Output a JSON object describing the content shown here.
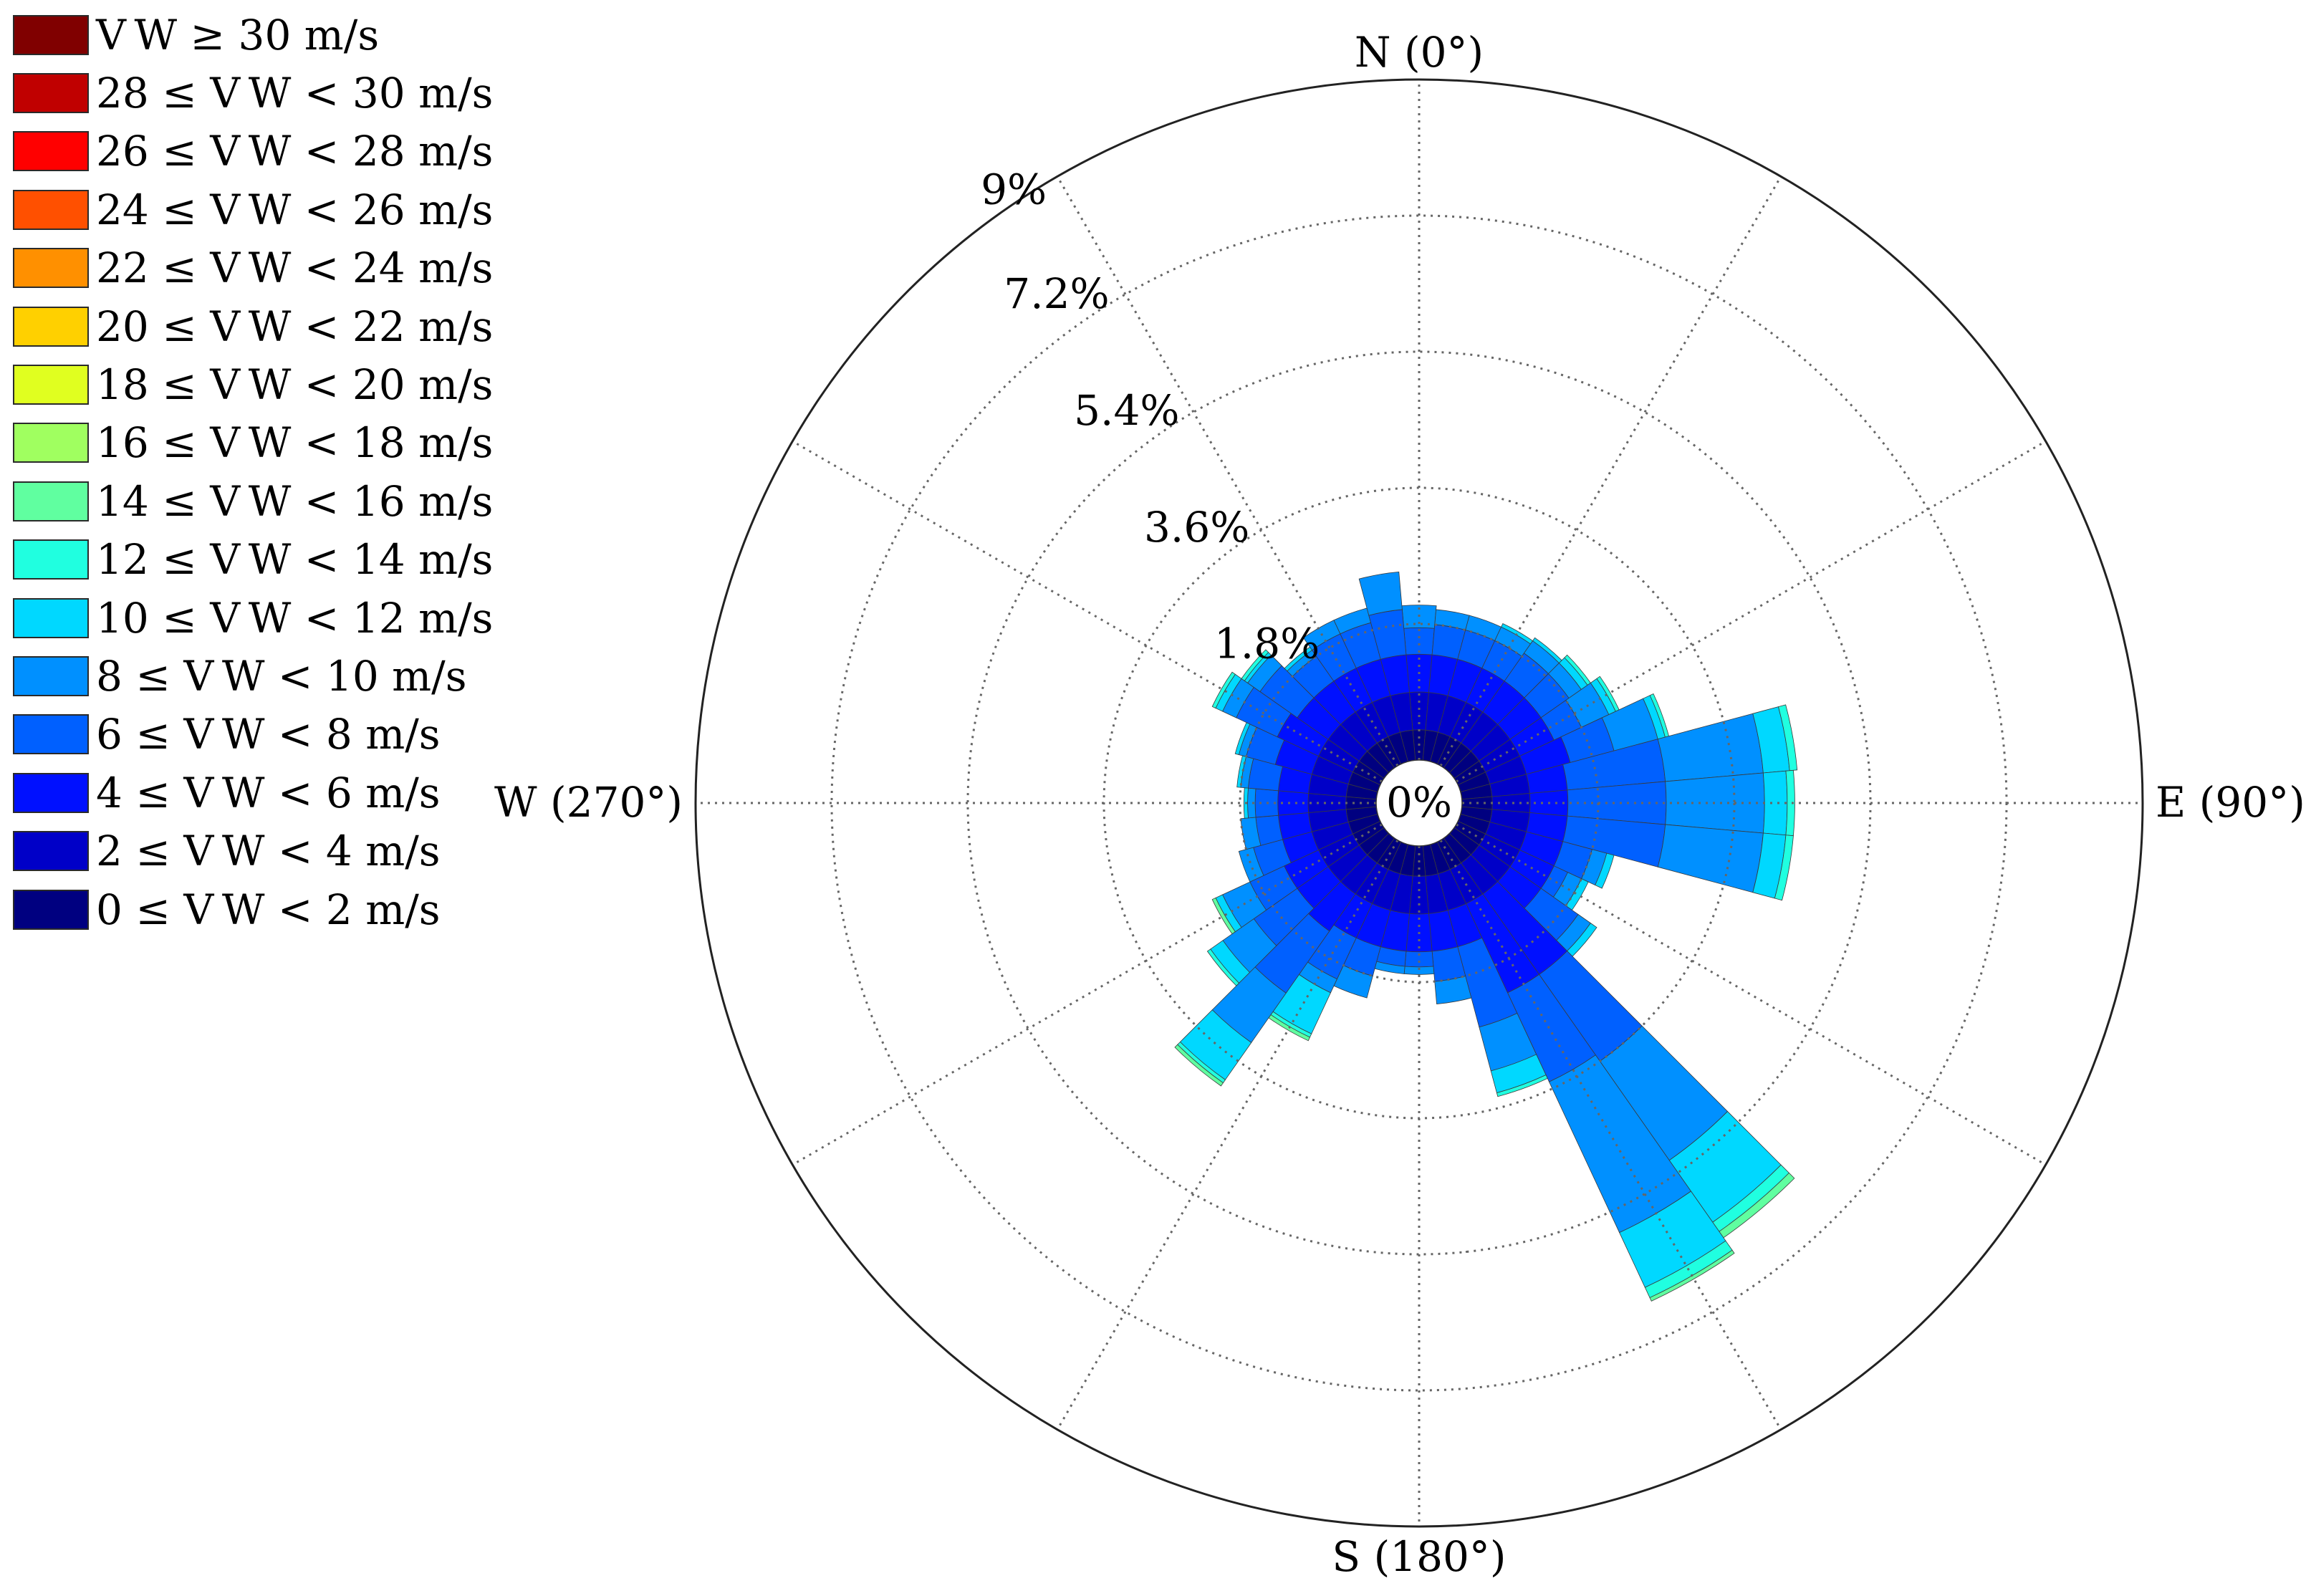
{
  "chart_data": {
    "type": "polar-stacked-bar",
    "title": "",
    "direction_labels": {
      "north": "N (0°)",
      "east": "E (90°)",
      "south": "S (180°)",
      "west": "W (270°)"
    },
    "center_label": "0%",
    "radial_ticks": [
      "1.8%",
      "3.6%",
      "5.4%",
      "7.2%",
      "9%"
    ],
    "radial_tick_values": [
      1.8,
      3.6,
      5.4,
      7.2,
      9
    ],
    "radial_max": 9,
    "direction_bin_width_deg": 10,
    "legend": [
      {
        "label": "V W ≥ 30 m/s",
        "color": "#800000"
      },
      {
        "label": "28 ≤ V W < 30 m/s",
        "color": "#c00000"
      },
      {
        "label": "26 ≤ V W < 28 m/s",
        "color": "#ff0000"
      },
      {
        "label": "24 ≤ V W < 26 m/s",
        "color": "#ff5000"
      },
      {
        "label": "22 ≤ V W < 24 m/s",
        "color": "#ff9000"
      },
      {
        "label": "20 ≤ V W < 22 m/s",
        "color": "#ffd000"
      },
      {
        "label": "18 ≤ V W < 20 m/s",
        "color": "#e0ff20"
      },
      {
        "label": "16 ≤ V W < 18 m/s",
        "color": "#a0ff60"
      },
      {
        "label": "14 ≤ V W < 16 m/s",
        "color": "#60ffa0"
      },
      {
        "label": "12 ≤ V W < 14 m/s",
        "color": "#20ffe0"
      },
      {
        "label": "10 ≤ V W < 12 m/s",
        "color": "#00d8ff"
      },
      {
        "label": "8 ≤ V W < 10 m/s",
        "color": "#0090ff"
      },
      {
        "label": "6 ≤ V W < 8 m/s",
        "color": "#0060ff"
      },
      {
        "label": "4 ≤ V W < 6 m/s",
        "color": "#0010ff"
      },
      {
        "label": "2 ≤ V W < 4 m/s",
        "color": "#0000c8"
      },
      {
        "label": "0 ≤ V W < 2 m/s",
        "color": "#000080"
      }
    ],
    "speed_bins": [
      "0-2",
      "2-4",
      "4-6",
      "6-8",
      "8-10",
      "10-12",
      "12-14",
      "14-16"
    ],
    "speed_colors": [
      "#000080",
      "#0000c8",
      "#0010ff",
      "#0060ff",
      "#0090ff",
      "#00d8ff",
      "#20ffe0",
      "#60ffa0"
    ],
    "directions": [
      0,
      10,
      20,
      30,
      40,
      50,
      60,
      70,
      80,
      90,
      100,
      110,
      120,
      130,
      140,
      150,
      160,
      170,
      180,
      190,
      200,
      210,
      220,
      230,
      240,
      250,
      260,
      270,
      280,
      290,
      300,
      310,
      320,
      330,
      340,
      350
    ],
    "frequencies": [
      [
        0.4,
        0.5,
        0.5,
        0.35,
        0.3,
        0.0,
        0.0,
        0.0
      ],
      [
        0.4,
        0.5,
        0.5,
        0.4,
        0.2,
        0.0,
        0.0,
        0.0
      ],
      [
        0.4,
        0.5,
        0.5,
        0.4,
        0.2,
        0.0,
        0.0,
        0.0
      ],
      [
        0.4,
        0.5,
        0.5,
        0.4,
        0.2,
        0.05,
        0.0,
        0.0
      ],
      [
        0.4,
        0.5,
        0.5,
        0.45,
        0.2,
        0.05,
        0.0,
        0.0
      ],
      [
        0.4,
        0.5,
        0.5,
        0.45,
        0.2,
        0.1,
        0.05,
        0.0
      ],
      [
        0.4,
        0.5,
        0.5,
        0.4,
        0.4,
        0.1,
        0.05,
        0.0
      ],
      [
        0.4,
        0.5,
        0.6,
        0.6,
        0.6,
        0.1,
        0.05,
        0.0
      ],
      [
        0.4,
        0.5,
        0.5,
        1.3,
        1.3,
        0.35,
        0.1,
        0.0
      ],
      [
        0.4,
        0.5,
        0.5,
        1.3,
        1.3,
        0.3,
        0.1,
        0.0
      ],
      [
        0.4,
        0.5,
        0.5,
        1.3,
        1.3,
        0.3,
        0.1,
        0.0
      ],
      [
        0.4,
        0.5,
        0.5,
        0.4,
        0.2,
        0.1,
        0.0,
        0.0
      ],
      [
        0.4,
        0.5,
        0.5,
        0.2,
        0.2,
        0.1,
        0.0,
        0.0
      ],
      [
        0.4,
        0.5,
        0.5,
        0.6,
        0.2,
        0.1,
        0.0,
        0.0
      ],
      [
        0.4,
        0.5,
        1.3,
        1.4,
        1.6,
        1.0,
        0.15,
        0.1
      ],
      [
        0.4,
        0.5,
        1.3,
        1.3,
        2.2,
        0.8,
        0.15,
        0.05
      ],
      [
        0.4,
        0.5,
        0.5,
        1.1,
        0.6,
        0.3,
        0.05,
        0.0
      ],
      [
        0.4,
        0.5,
        0.5,
        0.4,
        0.3,
        0.0,
        0.0,
        0.0
      ],
      [
        0.4,
        0.5,
        0.5,
        0.2,
        0.1,
        0.0,
        0.0,
        0.0
      ],
      [
        0.4,
        0.5,
        0.5,
        0.2,
        0.1,
        0.0,
        0.0,
        0.0
      ],
      [
        0.4,
        0.5,
        0.5,
        0.4,
        0.3,
        0.0,
        0.0,
        0.0
      ],
      [
        0.4,
        0.5,
        0.5,
        0.6,
        0.2,
        0.6,
        0.05,
        0.05
      ],
      [
        0.4,
        0.5,
        0.6,
        1.0,
        0.8,
        0.6,
        0.05,
        0.05
      ],
      [
        0.4,
        0.5,
        0.5,
        0.7,
        0.5,
        0.2,
        0.05,
        0.0
      ],
      [
        0.4,
        0.5,
        0.5,
        0.5,
        0.4,
        0.1,
        0.0,
        0.05
      ],
      [
        0.4,
        0.5,
        0.4,
        0.4,
        0.2,
        0.0,
        0.0,
        0.0
      ],
      [
        0.4,
        0.5,
        0.4,
        0.3,
        0.2,
        0.0,
        0.0,
        0.0
      ],
      [
        0.4,
        0.5,
        0.4,
        0.3,
        0.1,
        0.05,
        0.0,
        0.0
      ],
      [
        0.4,
        0.5,
        0.4,
        0.4,
        0.1,
        0.05,
        0.0,
        0.0
      ],
      [
        0.4,
        0.5,
        0.5,
        0.4,
        0.1,
        0.05,
        0.0,
        0.0
      ],
      [
        0.4,
        0.5,
        0.6,
        0.6,
        0.2,
        0.1,
        0.05,
        0.0
      ],
      [
        0.4,
        0.5,
        0.5,
        0.6,
        0.2,
        0.05,
        0.05,
        0.0
      ],
      [
        0.4,
        0.5,
        0.5,
        0.4,
        0.1,
        0.05,
        0.0,
        0.0
      ],
      [
        0.4,
        0.5,
        0.5,
        0.5,
        0.2,
        0.0,
        0.0,
        0.0
      ],
      [
        0.4,
        0.5,
        0.5,
        0.5,
        0.2,
        0.0,
        0.0,
        0.0
      ],
      [
        0.4,
        0.5,
        0.5,
        0.6,
        0.5,
        0.0,
        0.0,
        0.0
      ]
    ]
  }
}
